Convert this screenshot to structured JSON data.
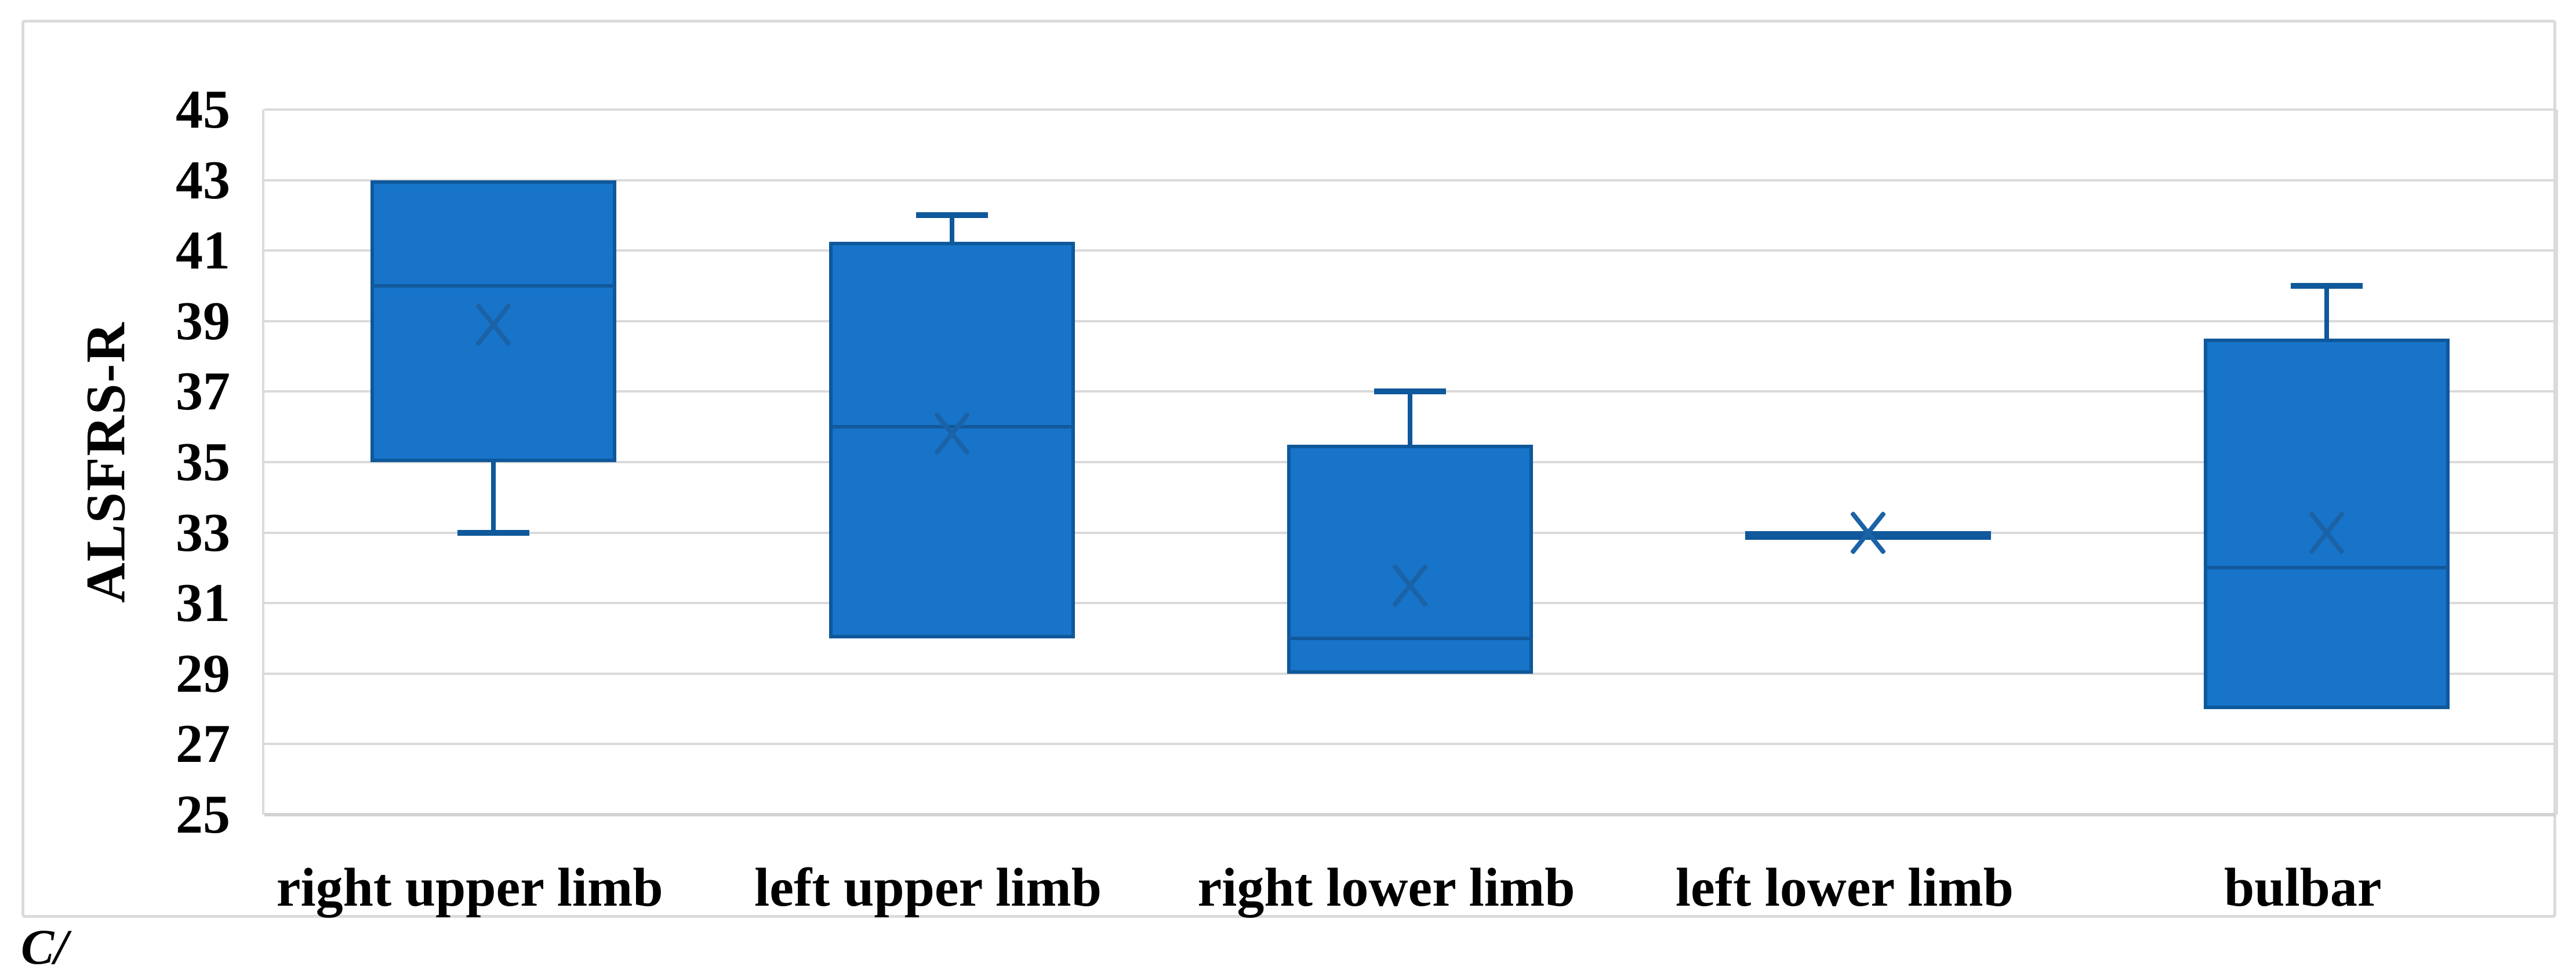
{
  "figure": {
    "panel_label": "C/"
  },
  "chart_data": {
    "type": "boxplot",
    "title": "",
    "xlabel": "",
    "ylabel": "ALSFRS-R",
    "ylim": [
      25,
      45
    ],
    "yticks": [
      45,
      43,
      41,
      39,
      37,
      35,
      33,
      31,
      29,
      27,
      25
    ],
    "grid": true,
    "legend_position": "none",
    "categories": [
      "right upper limb",
      "left upper limb",
      "right lower limb",
      "left lower limb",
      "bulbar"
    ],
    "series": [
      {
        "name": "right upper limb",
        "min": 33,
        "q1": 35,
        "median": 40,
        "mean": 38.9,
        "q3": 43,
        "max": 43
      },
      {
        "name": "left upper limb",
        "min": 30,
        "q1": 30,
        "median": 36,
        "mean": 35.8,
        "q3": 41.25,
        "max": 42
      },
      {
        "name": "right lower limb",
        "min": 29,
        "q1": 29,
        "median": 30,
        "mean": 31.5,
        "q3": 35.5,
        "max": 37
      },
      {
        "name": "left lower limb",
        "min": 33,
        "q1": 33,
        "median": 33,
        "mean": 33,
        "q3": 33,
        "max": 33
      },
      {
        "name": "bulbar",
        "min": 28,
        "q1": 28,
        "median": 32,
        "mean": 33,
        "q3": 38.5,
        "max": 40
      }
    ],
    "colors": {
      "box_fill": "#1774C9",
      "box_border": "#0E589B",
      "median_line": "#12599C",
      "mean_marker": "#1B62A6",
      "gridline": "#DADADA",
      "axis_line": "#D2D2D2",
      "text": "#000000",
      "frame_border": "#DBDBDB",
      "background": "#FFFFFF"
    }
  }
}
